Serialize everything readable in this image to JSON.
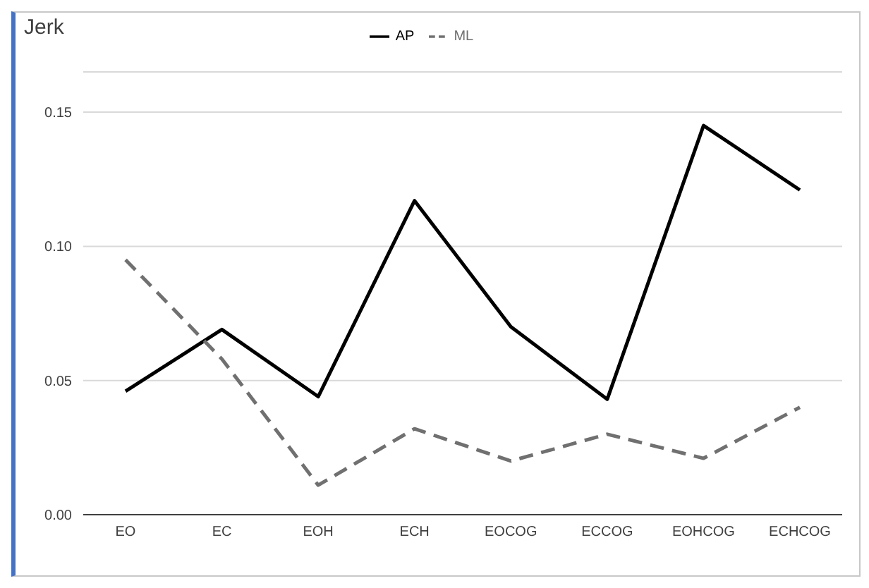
{
  "chart_data": {
    "type": "line",
    "title": "Jerk",
    "categories": [
      "EO",
      "EC",
      "EOH",
      "ECH",
      "EOCOG",
      "ECCOG",
      "EOHCOG",
      "ECHCOG"
    ],
    "series": [
      {
        "name": "AP",
        "color": "#000000",
        "line_style": "solid",
        "values": [
          0.046,
          0.069,
          0.044,
          0.117,
          0.07,
          0.043,
          0.145,
          0.121
        ]
      },
      {
        "name": "ML",
        "color": "#707070",
        "line_style": "dashed",
        "values": [
          0.095,
          0.058,
          0.011,
          0.032,
          0.02,
          0.03,
          0.021,
          0.04
        ]
      }
    ],
    "ylim": [
      0,
      0.165
    ],
    "yticks": [
      {
        "value": 0,
        "label": "0.00"
      },
      {
        "value": 0.05,
        "label": "0.05"
      },
      {
        "value": 0.1,
        "label": "0.10"
      },
      {
        "value": 0.15,
        "label": "0.15"
      }
    ],
    "grid": "y",
    "legend": "top",
    "marker": "none"
  }
}
